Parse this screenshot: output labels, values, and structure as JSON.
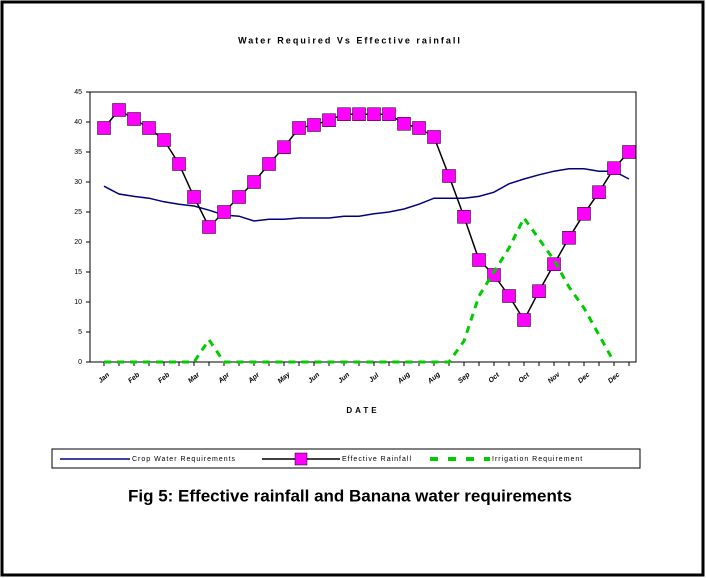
{
  "chart_data": {
    "type": "line",
    "title": "Water Required Vs Effective rainfall",
    "x_label": "DATE",
    "caption": "Fig 5: Effective rainfall and Banana water requirements",
    "categories": [
      "Jan",
      null,
      "Feb",
      null,
      "Feb",
      null,
      "Mar",
      null,
      "Apr",
      null,
      "Apr",
      null,
      "May",
      null,
      "Jun",
      null,
      "Jun",
      null,
      "Jul",
      null,
      "Aug",
      null,
      "Aug",
      null,
      "Sep",
      null,
      "Oct",
      null,
      "Oct",
      null,
      "Nov",
      null,
      "Dec",
      null,
      "Dec",
      null
    ],
    "ylim": [
      0,
      45
    ],
    "yticks": [
      0,
      5,
      10,
      15,
      20,
      25,
      30,
      35,
      40,
      45
    ],
    "legend": "bottom",
    "series": [
      {
        "name": "Crop Water Requirements",
        "color": "#000080",
        "values": [
          29.3,
          28,
          27.6,
          27.3,
          26.7,
          26.3,
          26,
          25.3,
          24.5,
          24.3,
          23.5,
          23.8,
          23.8,
          24,
          24,
          24,
          24.3,
          24.3,
          24.7,
          25,
          25.5,
          26.3,
          27.3,
          27.3,
          27.3,
          27.6,
          28.3,
          29.7,
          30.5,
          31.2,
          31.8,
          32.2,
          32.2,
          31.8,
          31.8,
          30.5
        ]
      },
      {
        "name": "Effective Rainfall",
        "color": "#000000",
        "marker_color": "#ff00ff",
        "values": [
          39,
          42,
          40.5,
          39,
          37,
          33,
          27.5,
          22.5,
          25,
          27.5,
          30,
          33,
          35.8,
          39,
          39.5,
          40.3,
          41.3,
          41.3,
          41.3,
          41.3,
          39.7,
          39,
          37.5,
          31,
          24.2,
          17,
          14.5,
          11,
          7,
          11.8,
          16.3,
          20.7,
          24.7,
          28.3,
          32.3,
          35
        ]
      },
      {
        "name": "Irrigation Requirement",
        "color": "#00cc00",
        "dashed": true,
        "values": [
          0,
          0,
          0,
          0,
          0,
          0,
          0,
          3.7,
          0,
          0,
          0,
          0,
          0,
          0,
          0,
          0,
          0,
          0,
          0,
          0,
          0,
          0,
          0,
          0,
          3.5,
          11,
          15,
          19,
          24,
          20.5,
          17,
          12.5,
          9,
          4.5,
          0,
          null
        ]
      }
    ]
  }
}
